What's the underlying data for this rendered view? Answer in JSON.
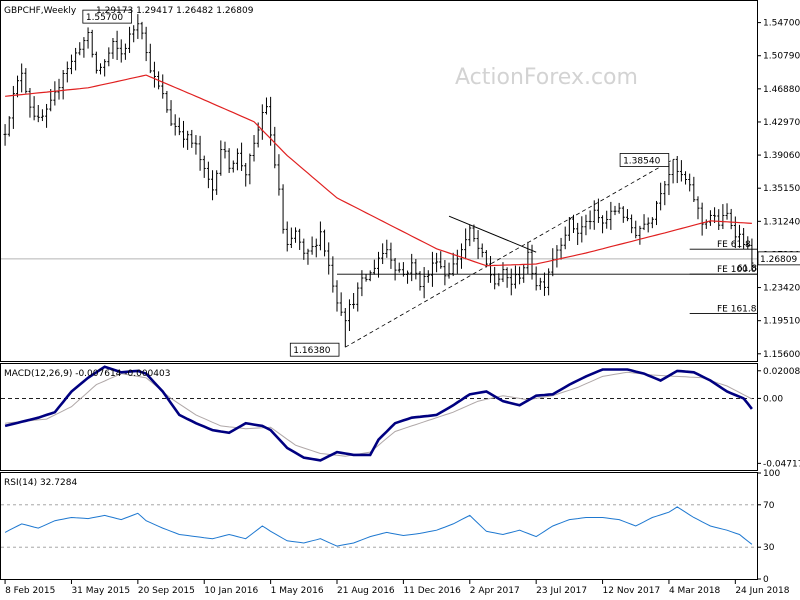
{
  "chart_data": [
    {
      "type": "candlestick",
      "title": "GBPCHF,Weekly",
      "ohlc_text": "1.29173 1.29417 1.26482 1.26809",
      "watermark": "ActionForex.com",
      "last_price_label": "1.26809",
      "ylim": [
        1.1475,
        1.5725
      ],
      "y_ticks": [
        "1.54700",
        "1.50790",
        "1.46880",
        "1.42970",
        "1.39060",
        "1.35150",
        "1.31240",
        "1.27330",
        "1.23420",
        "1.19510",
        "1.15600"
      ],
      "x_ticks": [
        {
          "label": "8 Feb 2015",
          "week": 0
        },
        {
          "label": "31 May 2015",
          "week": 16
        },
        {
          "label": "20 Sep 2015",
          "week": 32
        },
        {
          "label": "10 Jan 2016",
          "week": 48
        },
        {
          "label": "1 May 2016",
          "week": 64
        },
        {
          "label": "21 Aug 2016",
          "week": 80
        },
        {
          "label": "11 Dec 2016",
          "week": 96
        },
        {
          "label": "2 Apr 2017",
          "week": 112
        },
        {
          "label": "23 Jul 2017",
          "week": 128
        },
        {
          "label": "12 Nov 2017",
          "week": 144
        },
        {
          "label": "4 Mar 2018",
          "week": 160
        },
        {
          "label": "24 Jun 2018",
          "week": 176
        }
      ],
      "week_count": 181,
      "close_anchors": [
        [
          0,
          1.42
        ],
        [
          2,
          1.46
        ],
        [
          4,
          1.49
        ],
        [
          6,
          1.45
        ],
        [
          8,
          1.43
        ],
        [
          10,
          1.44
        ],
        [
          12,
          1.46
        ],
        [
          14,
          1.49
        ],
        [
          16,
          1.5
        ],
        [
          18,
          1.52
        ],
        [
          20,
          1.53
        ],
        [
          22,
          1.49
        ],
        [
          24,
          1.5
        ],
        [
          26,
          1.52
        ],
        [
          28,
          1.51
        ],
        [
          30,
          1.53
        ],
        [
          32,
          1.55
        ],
        [
          33,
          1.54
        ],
        [
          34,
          1.51
        ],
        [
          36,
          1.48
        ],
        [
          38,
          1.46
        ],
        [
          40,
          1.43
        ],
        [
          42,
          1.42
        ],
        [
          44,
          1.41
        ],
        [
          46,
          1.4
        ],
        [
          48,
          1.37
        ],
        [
          50,
          1.35
        ],
        [
          52,
          1.4
        ],
        [
          54,
          1.38
        ],
        [
          56,
          1.39
        ],
        [
          58,
          1.37
        ],
        [
          60,
          1.4
        ],
        [
          62,
          1.44
        ],
        [
          63,
          1.45
        ],
        [
          64,
          1.41
        ],
        [
          66,
          1.35
        ],
        [
          67,
          1.3
        ],
        [
          68,
          1.28
        ],
        [
          70,
          1.3
        ],
        [
          72,
          1.27
        ],
        [
          74,
          1.28
        ],
        [
          76,
          1.3
        ],
        [
          78,
          1.26
        ],
        [
          80,
          1.22
        ],
        [
          82,
          1.2
        ],
        [
          84,
          1.22
        ],
        [
          86,
          1.24
        ],
        [
          88,
          1.25
        ],
        [
          90,
          1.27
        ],
        [
          92,
          1.28
        ],
        [
          94,
          1.26
        ],
        [
          96,
          1.25
        ],
        [
          98,
          1.26
        ],
        [
          100,
          1.24
        ],
        [
          102,
          1.25
        ],
        [
          104,
          1.27
        ],
        [
          106,
          1.25
        ],
        [
          108,
          1.26
        ],
        [
          110,
          1.28
        ],
        [
          112,
          1.3
        ],
        [
          114,
          1.28
        ],
        [
          116,
          1.26
        ],
        [
          118,
          1.24
        ],
        [
          120,
          1.25
        ],
        [
          122,
          1.24
        ],
        [
          124,
          1.25
        ],
        [
          126,
          1.27
        ],
        [
          128,
          1.24
        ],
        [
          130,
          1.24
        ],
        [
          132,
          1.27
        ],
        [
          134,
          1.29
        ],
        [
          136,
          1.31
        ],
        [
          138,
          1.3
        ],
        [
          140,
          1.31
        ],
        [
          142,
          1.32
        ],
        [
          144,
          1.31
        ],
        [
          146,
          1.32
        ],
        [
          148,
          1.33
        ],
        [
          150,
          1.31
        ],
        [
          152,
          1.3
        ],
        [
          154,
          1.31
        ],
        [
          156,
          1.32
        ],
        [
          158,
          1.35
        ],
        [
          160,
          1.37
        ],
        [
          161,
          1.38
        ],
        [
          162,
          1.37
        ],
        [
          164,
          1.36
        ],
        [
          166,
          1.34
        ],
        [
          168,
          1.31
        ],
        [
          170,
          1.32
        ],
        [
          172,
          1.31
        ],
        [
          174,
          1.32
        ],
        [
          176,
          1.3
        ],
        [
          178,
          1.29
        ],
        [
          180,
          1.268
        ]
      ],
      "series": [
        {
          "name": "",
          "type": "sma",
          "color": "#e02020",
          "anchors": [
            [
              0,
              1.46
            ],
            [
              20,
              1.47
            ],
            [
              34,
              1.485
            ],
            [
              46,
              1.46
            ],
            [
              60,
              1.43
            ],
            [
              68,
              1.39
            ],
            [
              80,
              1.34
            ],
            [
              92,
              1.31
            ],
            [
              104,
              1.28
            ],
            [
              116,
              1.26
            ],
            [
              128,
              1.262
            ],
            [
              140,
              1.275
            ],
            [
              152,
              1.29
            ],
            [
              160,
              1.3
            ],
            [
              170,
              1.313
            ],
            [
              180,
              1.31
            ]
          ]
        }
      ],
      "annotations": {
        "peak_label": "1.55700",
        "peak_value": 1.557,
        "peak_week": 32,
        "trough_label": "1.16380",
        "trough_value": 1.1638,
        "trough_week": 82,
        "high_label": "1.38540",
        "high_value": 1.3854,
        "high_week": 161,
        "fe_levels": [
          {
            "label": "FE 61.8",
            "value": 1.2795,
            "from_week": 165
          },
          {
            "label": "FE 100.0",
            "value": 1.25,
            "from_week": 165
          },
          {
            "label": "FE 161.8",
            "value": 1.2035,
            "from_week": 165
          }
        ],
        "extra_label": "61.8",
        "support_level": 1.25,
        "support_from_week": 80,
        "trend_line": {
          "x1_week": 82,
          "y1": 1.1638,
          "x2_week": 161,
          "y2": 1.3854
        },
        "channel_line": {
          "x1_week": 107,
          "y1": 1.3185,
          "x2_week": 128,
          "y2": 1.276
        }
      }
    },
    {
      "type": "line",
      "title": "MACD(12,26,9) -0.007614 -0.000403",
      "ylim": [
        -0.052,
        0.025
      ],
      "y_ticks": [
        "0.020082",
        "0.00",
        "-0.047175"
      ],
      "y_tick_values": [
        0.020082,
        0.0,
        -0.047175
      ],
      "series": [
        {
          "name": "",
          "color": "#000080",
          "anchors": [
            [
              0,
              -0.02
            ],
            [
              8,
              -0.014
            ],
            [
              12,
              -0.01
            ],
            [
              16,
              0.005
            ],
            [
              20,
              0.015
            ],
            [
              24,
              0.023
            ],
            [
              28,
              0.019
            ],
            [
              32,
              0.02
            ],
            [
              34,
              0.018
            ],
            [
              38,
              0.005
            ],
            [
              42,
              -0.012
            ],
            [
              46,
              -0.018
            ],
            [
              50,
              -0.023
            ],
            [
              54,
              -0.025
            ],
            [
              58,
              -0.018
            ],
            [
              62,
              -0.02
            ],
            [
              64,
              -0.023
            ],
            [
              68,
              -0.036
            ],
            [
              72,
              -0.043
            ],
            [
              76,
              -0.045
            ],
            [
              80,
              -0.039
            ],
            [
              84,
              -0.041
            ],
            [
              88,
              -0.041
            ],
            [
              90,
              -0.03
            ],
            [
              94,
              -0.018
            ],
            [
              98,
              -0.014
            ],
            [
              104,
              -0.012
            ],
            [
              108,
              -0.005
            ],
            [
              112,
              0.003
            ],
            [
              116,
              0.005
            ],
            [
              120,
              -0.002
            ],
            [
              124,
              -0.005
            ],
            [
              128,
              0.002
            ],
            [
              132,
              0.003
            ],
            [
              136,
              0.01
            ],
            [
              140,
              0.016
            ],
            [
              144,
              0.021
            ],
            [
              150,
              0.021
            ],
            [
              154,
              0.018
            ],
            [
              158,
              0.013
            ],
            [
              162,
              0.02
            ],
            [
              166,
              0.019
            ],
            [
              170,
              0.013
            ],
            [
              174,
              0.005
            ],
            [
              178,
              0.0
            ],
            [
              180,
              -0.0076
            ]
          ]
        },
        {
          "name": "",
          "color": "#b0a8a8",
          "anchors": [
            [
              0,
              -0.018
            ],
            [
              10,
              -0.015
            ],
            [
              16,
              -0.006
            ],
            [
              22,
              0.01
            ],
            [
              28,
              0.018
            ],
            [
              34,
              0.015
            ],
            [
              40,
              0.0
            ],
            [
              46,
              -0.012
            ],
            [
              52,
              -0.02
            ],
            [
              58,
              -0.022
            ],
            [
              64,
              -0.021
            ],
            [
              70,
              -0.034
            ],
            [
              76,
              -0.04
            ],
            [
              82,
              -0.042
            ],
            [
              88,
              -0.039
            ],
            [
              94,
              -0.024
            ],
            [
              100,
              -0.018
            ],
            [
              108,
              -0.01
            ],
            [
              114,
              -0.002
            ],
            [
              120,
              0.002
            ],
            [
              126,
              -0.001
            ],
            [
              132,
              0.002
            ],
            [
              138,
              0.008
            ],
            [
              144,
              0.016
            ],
            [
              150,
              0.019
            ],
            [
              156,
              0.017
            ],
            [
              162,
              0.016
            ],
            [
              168,
              0.015
            ],
            [
              174,
              0.009
            ],
            [
              180,
              -0.0004
            ]
          ]
        }
      ]
    },
    {
      "type": "line",
      "title": "RSI(14) 32.7284",
      "ylim": [
        0,
        100
      ],
      "y_ticks": [
        "100",
        "70",
        "30",
        "0"
      ],
      "y_tick_values": [
        100,
        70,
        30,
        0
      ],
      "levels": [
        70,
        30
      ],
      "series": [
        {
          "name": "",
          "color": "#1e78d0",
          "anchors": [
            [
              0,
              44
            ],
            [
              4,
              52
            ],
            [
              8,
              48
            ],
            [
              12,
              55
            ],
            [
              16,
              58
            ],
            [
              20,
              57
            ],
            [
              24,
              60
            ],
            [
              28,
              56
            ],
            [
              32,
              62
            ],
            [
              34,
              55
            ],
            [
              38,
              48
            ],
            [
              42,
              42
            ],
            [
              46,
              40
            ],
            [
              50,
              38
            ],
            [
              54,
              42
            ],
            [
              58,
              38
            ],
            [
              62,
              50
            ],
            [
              64,
              45
            ],
            [
              68,
              36
            ],
            [
              72,
              34
            ],
            [
              76,
              38
            ],
            [
              80,
              31
            ],
            [
              84,
              34
            ],
            [
              88,
              40
            ],
            [
              92,
              44
            ],
            [
              96,
              41
            ],
            [
              100,
              43
            ],
            [
              104,
              46
            ],
            [
              108,
              52
            ],
            [
              112,
              60
            ],
            [
              116,
              45
            ],
            [
              120,
              42
            ],
            [
              124,
              46
            ],
            [
              128,
              40
            ],
            [
              132,
              50
            ],
            [
              136,
              56
            ],
            [
              140,
              58
            ],
            [
              144,
              58
            ],
            [
              148,
              56
            ],
            [
              152,
              50
            ],
            [
              156,
              58
            ],
            [
              160,
              63
            ],
            [
              162,
              68
            ],
            [
              166,
              58
            ],
            [
              170,
              50
            ],
            [
              174,
              46
            ],
            [
              177,
              42
            ],
            [
              180,
              32.7
            ]
          ]
        }
      ]
    }
  ]
}
